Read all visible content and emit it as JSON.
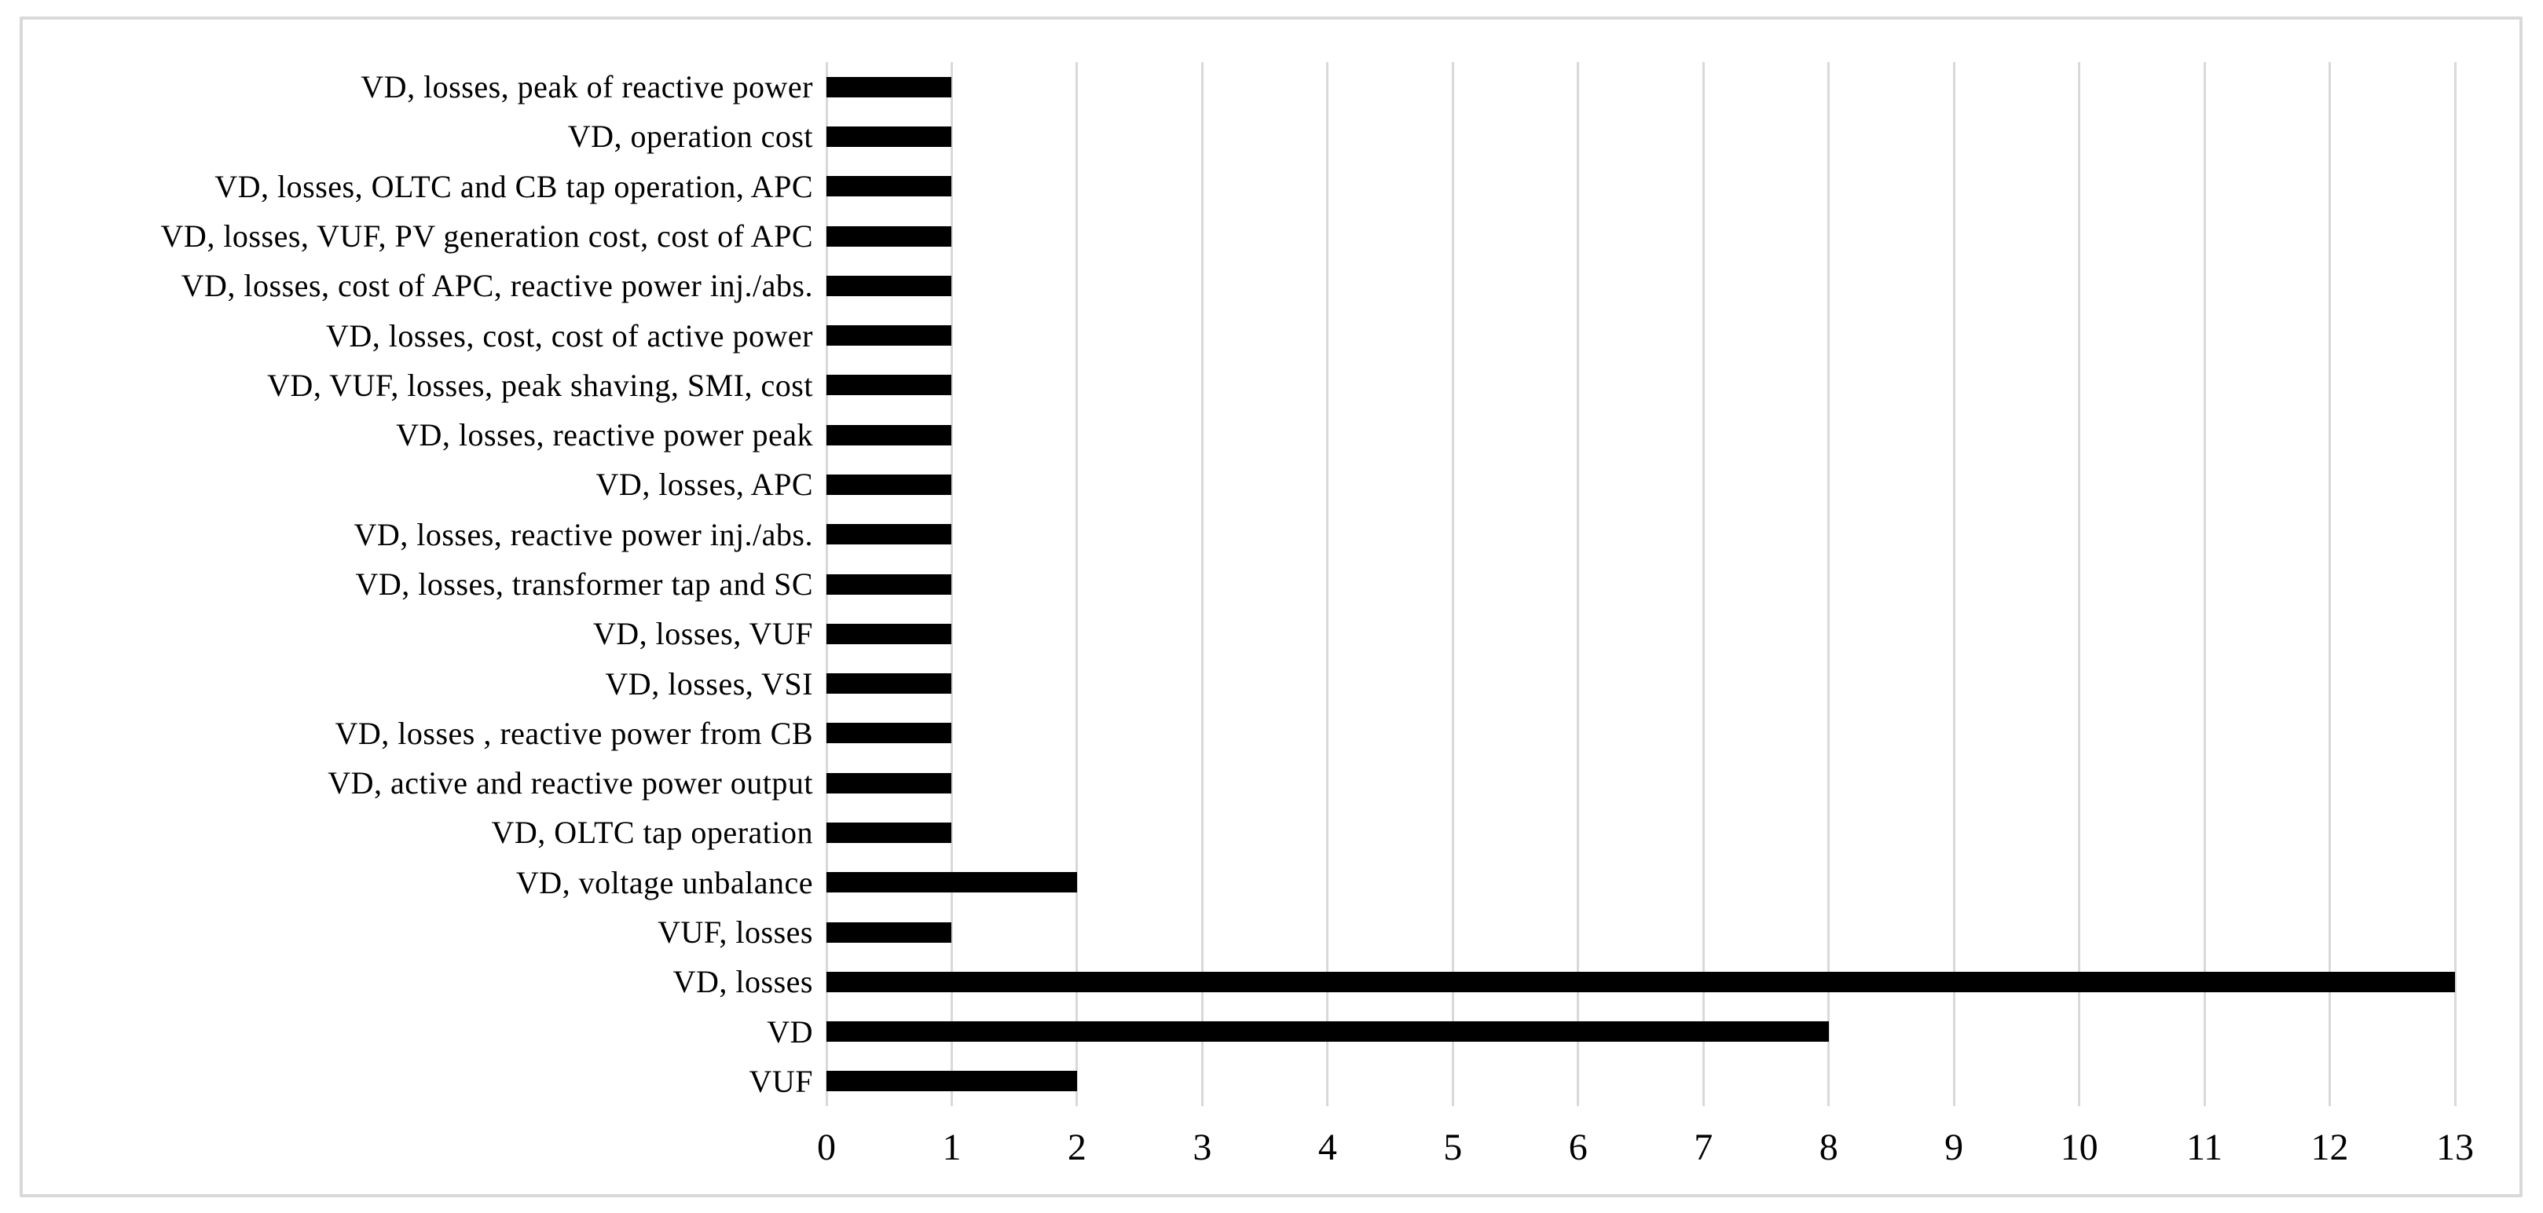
{
  "chart_data": {
    "type": "bar",
    "orientation": "horizontal",
    "title": "",
    "xlabel": "",
    "ylabel": "",
    "categories": [
      "VD, losses, peak of reactive power",
      "VD, operation cost",
      "VD, losses, OLTC and CB tap operation, APC",
      "VD, losses, VUF, PV generation cost, cost of APC",
      "VD, losses, cost of APC, reactive power inj./abs.",
      "VD, losses, cost, cost of active power",
      "VD, VUF, losses, peak shaving, SMI, cost",
      "VD, losses, reactive power peak",
      "VD, losses, APC",
      "VD, losses, reactive power inj./abs.",
      "VD, losses, transformer tap and SC",
      "VD, losses, VUF",
      "VD, losses, VSI",
      "VD, losses , reactive power from CB",
      "VD, active and reactive power output",
      "VD, OLTC tap operation",
      "VD, voltage unbalance",
      "VUF, losses",
      "VD, losses",
      "VD",
      "VUF"
    ],
    "values": [
      1,
      1,
      1,
      1,
      1,
      1,
      1,
      1,
      1,
      1,
      1,
      1,
      1,
      1,
      1,
      1,
      2,
      1,
      13,
      8,
      2
    ],
    "xlim": [
      0,
      13
    ],
    "xticks": [
      "0",
      "1",
      "2",
      "3",
      "4",
      "5",
      "6",
      "7",
      "8",
      "9",
      "10",
      "11",
      "12",
      "13"
    ],
    "grid": "vertical-only",
    "legend": "none",
    "colors": {
      "bar": "#000000",
      "gridline": "#d9d9d9",
      "frame_border": "#d9d9d9",
      "text": "#000000",
      "background": "#ffffff"
    }
  }
}
